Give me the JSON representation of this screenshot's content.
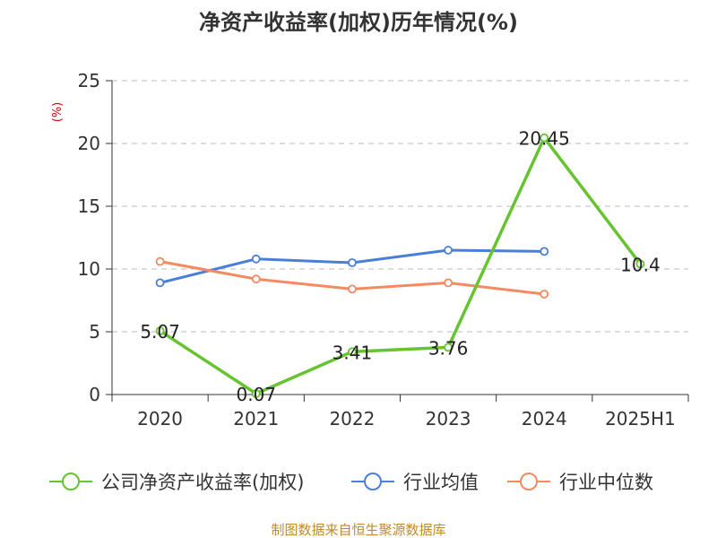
{
  "chart_data": {
    "type": "line",
    "title": "净资产收益率(加权)历年情况(%)",
    "ylabel": "(%)",
    "xlabel": "",
    "categories": [
      "2020",
      "2021",
      "2022",
      "2023",
      "2024",
      "2025H1"
    ],
    "ylim": [
      0,
      25
    ],
    "yticks": [
      0,
      5,
      10,
      15,
      20,
      25
    ],
    "grid": true,
    "legend_position": "bottom",
    "series": [
      {
        "name": "公司净资产收益率(加权)",
        "color": "#66c430",
        "values": [
          5.07,
          0.07,
          3.41,
          3.76,
          20.45,
          10.4
        ],
        "labels": [
          "5.07",
          "0.07",
          "3.41",
          "3.76",
          "20.45",
          "10.4"
        ],
        "show_labels": true
      },
      {
        "name": "行业均值",
        "color": "#4a7fd8",
        "values": [
          8.9,
          10.8,
          10.5,
          11.5,
          11.4,
          null
        ],
        "show_labels": false
      },
      {
        "name": "行业中位数",
        "color": "#f5895f",
        "values": [
          10.6,
          9.2,
          8.4,
          8.9,
          8.0,
          null
        ],
        "show_labels": false
      }
    ]
  },
  "source_note": "制图数据来自恒生聚源数据库",
  "colors": {
    "unit_label": "#d40000",
    "source_note": "#c08a2a",
    "grid": "#bbbbbb",
    "axis": "#333333"
  }
}
